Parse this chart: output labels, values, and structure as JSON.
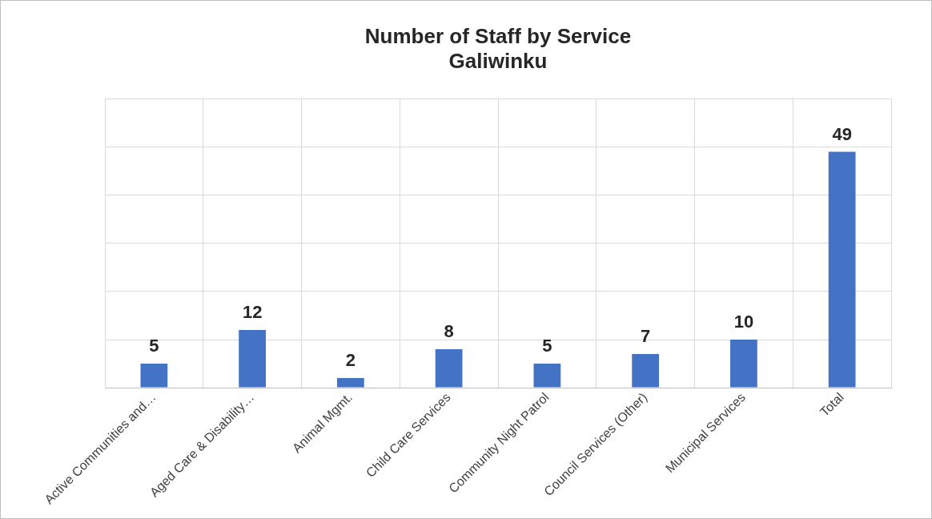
{
  "chart_data": {
    "type": "bar",
    "title": "Number of Staff by Service",
    "subtitle": "Galiwinku",
    "categories": [
      "Active Communities and…",
      "Aged Care & Disability…",
      "Animal Mgmt.",
      "Child Care Services",
      "Community Night Patrol",
      "Council Services (Other)",
      "Municipal Services",
      "Total"
    ],
    "values": [
      5,
      12,
      2,
      8,
      5,
      7,
      10,
      49
    ],
    "color": "#4472c4",
    "ylim": [
      0,
      60
    ],
    "yticks": [
      {
        "value": 0,
        "label": null
      },
      {
        "value": 10,
        "label": null
      },
      {
        "value": 20,
        "label": null
      },
      {
        "value": 30,
        "label": null
      },
      {
        "value": 40,
        "label": null
      },
      {
        "value": 50,
        "label": null
      },
      {
        "value": 60,
        "label": null
      }
    ],
    "tick_labels": "x",
    "grid": true,
    "legend": false,
    "data_labels": true
  }
}
